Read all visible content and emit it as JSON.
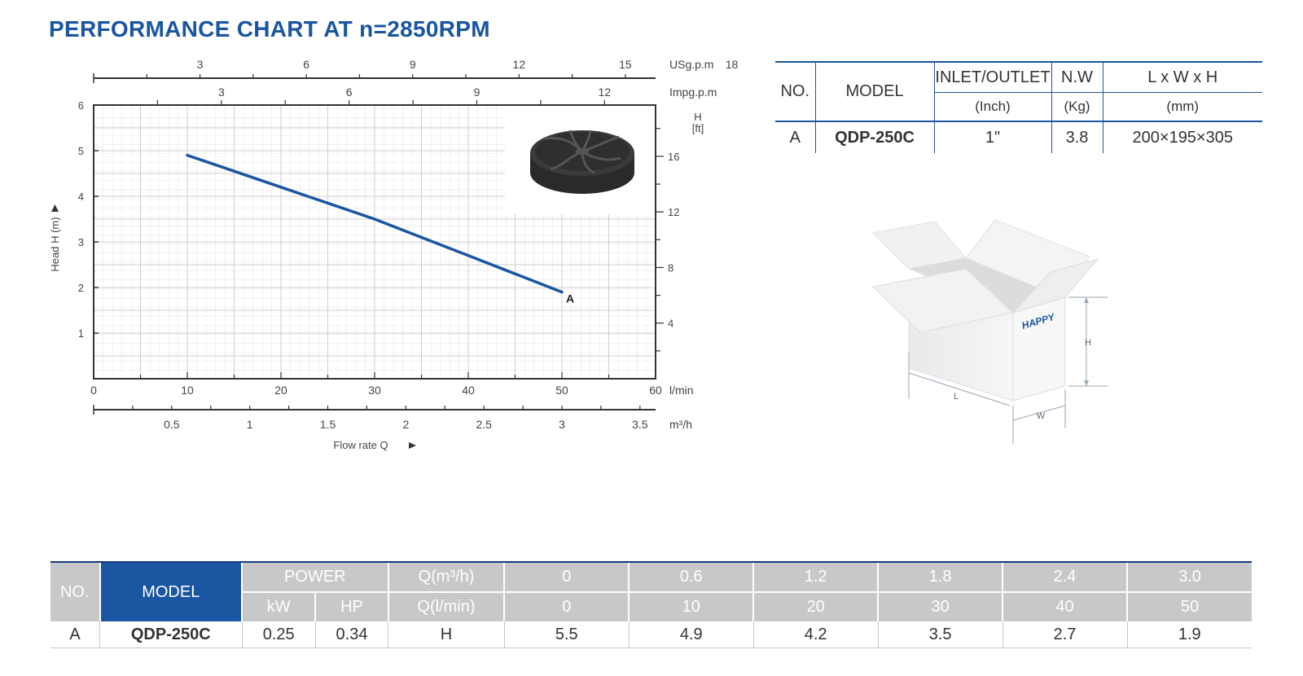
{
  "page": {
    "title": "PERFORMANCE CHART AT n=2850RPM"
  },
  "chart_data": {
    "type": "line",
    "title": "PERFORMANCE CHART AT n=2850RPM",
    "xlabel": "Flow rate Q",
    "ylabel": "Head H (m)",
    "right_axis_title": [
      "H",
      "[ft]"
    ],
    "x_unit": "l/min",
    "xlim": [
      0,
      60
    ],
    "ylim": [
      0,
      6
    ],
    "x_ticks": [
      "0",
      "10",
      "20",
      "30",
      "40",
      "50",
      "60"
    ],
    "y_ticks": [
      "1",
      "2",
      "3",
      "4",
      "5",
      "6"
    ],
    "top_axis_usgpm": {
      "unit": "USg.p.m",
      "ticks": [
        "3",
        "6",
        "9",
        "12",
        "15",
        "18"
      ]
    },
    "top_axis_impgpm": {
      "unit": "Impg.p.m",
      "ticks": [
        "3",
        "6",
        "9",
        "12"
      ]
    },
    "bottom_axis_m3h": {
      "unit": "m³/h",
      "ticks": [
        "0.5",
        "1",
        "1.5",
        "2",
        "2.5",
        "3",
        "3.5"
      ]
    },
    "right_axis_ft": {
      "ticks": [
        "4",
        "8",
        "12",
        "16"
      ]
    },
    "grid": true,
    "series": [
      {
        "name": "A",
        "color": "#1b56a2",
        "x": [
          10,
          20,
          30,
          40,
          50
        ],
        "y": [
          4.9,
          4.2,
          3.5,
          2.7,
          1.9
        ]
      }
    ]
  },
  "impeller_image": {
    "icon": "impeller-icon"
  },
  "box_image": {
    "icon": "carton-box-icon",
    "brand": "HAPPY",
    "dimension_labels": {
      "h": "H",
      "l": "L",
      "w": "W"
    }
  },
  "spec_table": {
    "headers": {
      "no": "NO.",
      "model": "MODEL",
      "inlet_outlet": "INLET/OUTLET",
      "nw": "N.W",
      "lwh": "L x W x H"
    },
    "units": {
      "inlet_outlet": "(Inch)",
      "nw": "(Kg)",
      "lwh": "(mm)"
    },
    "row": {
      "no": "A",
      "model": "QDP-250C",
      "inlet_outlet": "1\"",
      "nw": "3.8",
      "lwh": "200×195×305"
    }
  },
  "perf_table": {
    "headers": {
      "no": "NO.",
      "model": "MODEL",
      "power": "POWER",
      "q_m3h": "Q(m³/h)",
      "kw": "kW",
      "hp": "HP",
      "q_lmin": "Q(l/min)"
    },
    "q_m3h_values": [
      "0",
      "0.6",
      "1.2",
      "1.8",
      "2.4",
      "3.0"
    ],
    "q_lmin_values": [
      "0",
      "10",
      "20",
      "30",
      "40",
      "50"
    ],
    "row": {
      "no": "A",
      "model": "QDP-250C",
      "kw": "0.25",
      "hp": "0.34",
      "h_label": "H",
      "h_values": [
        "5.5",
        "4.9",
        "4.2",
        "3.5",
        "2.7",
        "1.9"
      ]
    }
  },
  "colors": {
    "brand_blue": "#1b56a2",
    "title_blue": "#1a55a0",
    "header_gray": "#c7c8ca"
  }
}
